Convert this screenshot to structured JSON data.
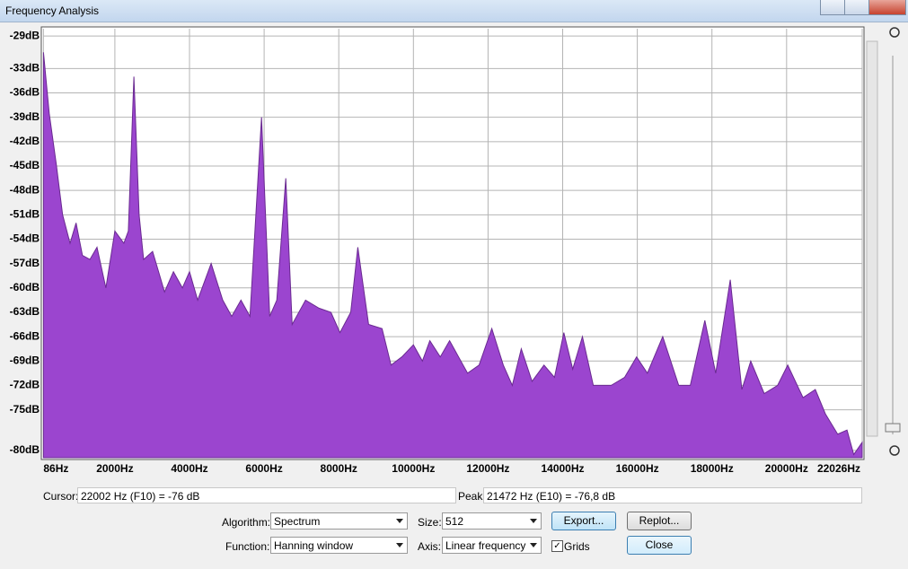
{
  "window": {
    "title": "Frequency Analysis"
  },
  "chart_data": {
    "type": "area",
    "x": [
      86,
      240,
      430,
      600,
      800,
      960,
      1130,
      1330,
      1520,
      1760,
      2000,
      2240,
      2360,
      2510,
      2650,
      2770,
      3010,
      3330,
      3570,
      3810,
      4000,
      4220,
      4580,
      4890,
      5130,
      5380,
      5620,
      5930,
      6150,
      6340,
      6580,
      6750,
      7110,
      7470,
      7790,
      8030,
      8320,
      8510,
      8800,
      9160,
      9400,
      9690,
      10000,
      10240,
      10440,
      10720,
      10970,
      11450,
      11760,
      12100,
      12410,
      12650,
      12890,
      13180,
      13500,
      13780,
      14030,
      14270,
      14530,
      14820,
      15300,
      15660,
      15980,
      16270,
      16680,
      17110,
      17420,
      17810,
      18100,
      18490,
      18800,
      19040,
      19400,
      19760,
      20030,
      20440,
      20770,
      21040,
      21370,
      21620,
      21800,
      22026
    ],
    "values": [
      -31,
      -38.5,
      -44.8,
      -51,
      -54.5,
      -52,
      -56,
      -56.5,
      -55,
      -60,
      -53,
      -54.5,
      -53,
      -34,
      -51,
      -56.5,
      -55.5,
      -60.5,
      -58,
      -60,
      -58,
      -61.5,
      -57,
      -61.5,
      -63.5,
      -61.5,
      -63.5,
      -39,
      -63.5,
      -61.5,
      -46.5,
      -64.5,
      -61.5,
      -62.5,
      -63,
      -65.5,
      -63,
      -55,
      -64.5,
      -65,
      -69.5,
      -68.5,
      -67,
      -69,
      -66.5,
      -68.5,
      -66.5,
      -70.5,
      -69.5,
      -65,
      -69.5,
      -72,
      -67.5,
      -71.5,
      -69.5,
      -71,
      -65.5,
      -70,
      -66,
      -72,
      -72,
      -71,
      -68.5,
      -70.5,
      -66,
      -72,
      -72,
      -64,
      -70.5,
      -59,
      -72.5,
      -69,
      -73,
      -72,
      -69.5,
      -73.5,
      -72.5,
      -75.5,
      -78,
      -77.5,
      -80.5,
      -79
    ],
    "color": "#9b45cf",
    "xlim": [
      77,
      22026
    ],
    "ylim": [
      -80.9,
      -28.1
    ],
    "xticks": [
      {
        "value": 86,
        "label": "86Hz"
      },
      {
        "value": 2000,
        "label": "2000Hz"
      },
      {
        "value": 4000,
        "label": "4000Hz"
      },
      {
        "value": 6000,
        "label": "6000Hz"
      },
      {
        "value": 8000,
        "label": "8000Hz"
      },
      {
        "value": 10000,
        "label": "10000Hz"
      },
      {
        "value": 12000,
        "label": "12000Hz"
      },
      {
        "value": 14000,
        "label": "14000Hz"
      },
      {
        "value": 16000,
        "label": "16000Hz"
      },
      {
        "value": 18000,
        "label": "18000Hz"
      },
      {
        "value": 20000,
        "label": "20000Hz"
      },
      {
        "value": 22026,
        "label": "22026Hz"
      }
    ],
    "yticks": [
      {
        "value": -29,
        "label": "-29dB"
      },
      {
        "value": -33,
        "label": "-33dB"
      },
      {
        "value": -36,
        "label": "-36dB"
      },
      {
        "value": -39,
        "label": "-39dB"
      },
      {
        "value": -42,
        "label": "-42dB"
      },
      {
        "value": -45,
        "label": "-45dB"
      },
      {
        "value": -48,
        "label": "-48dB"
      },
      {
        "value": -51,
        "label": "-51dB"
      },
      {
        "value": -54,
        "label": "-54dB"
      },
      {
        "value": -57,
        "label": "-57dB"
      },
      {
        "value": -60,
        "label": "-60dB"
      },
      {
        "value": -63,
        "label": "-63dB"
      },
      {
        "value": -66,
        "label": "-66dB"
      },
      {
        "value": -69,
        "label": "-69dB"
      },
      {
        "value": -72,
        "label": "-72dB"
      },
      {
        "value": -75,
        "label": "-75dB"
      },
      {
        "value": -80,
        "label": "-80dB"
      }
    ],
    "grid": true
  },
  "readout": {
    "cursor_label": "Cursor:",
    "cursor_value": "22002 Hz (F10) = -76 dB",
    "peak_label": "Peak:",
    "peak_value": "21472 Hz (E10) = -76,8 dB"
  },
  "controls": {
    "algorithm_label": "Algorithm:",
    "algorithm": "Spectrum",
    "size_label": "Size:",
    "size": "512",
    "export": "Export...",
    "replot": "Replot...",
    "function_label": "Function:",
    "function": "Hanning window",
    "axis_label": "Axis:",
    "axis": "Linear frequency",
    "grids": "Grids",
    "close": "Close"
  }
}
